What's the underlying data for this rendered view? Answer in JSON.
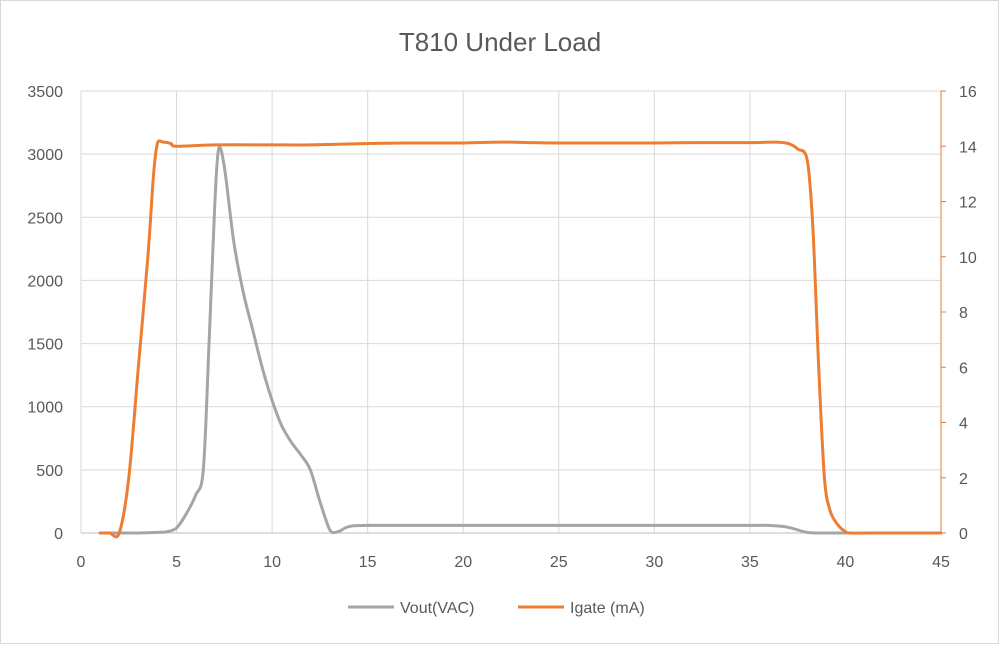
{
  "chart_data": {
    "type": "line",
    "title": "T810 Under Load",
    "xlabel": "",
    "ylabel": "",
    "y2label": "",
    "xlim": [
      0,
      45
    ],
    "ylim": [
      0,
      3500
    ],
    "y2lim": [
      0,
      16
    ],
    "x_ticks": [
      0,
      5,
      10,
      15,
      20,
      25,
      30,
      35,
      40,
      45
    ],
    "y_ticks": [
      0,
      500,
      1000,
      1500,
      2000,
      2500,
      3000,
      3500
    ],
    "y2_ticks": [
      0,
      2,
      4,
      6,
      8,
      10,
      12,
      14,
      16
    ],
    "grid": "vertical and horizontal",
    "legend_position": "bottom",
    "series": [
      {
        "name": "Vout(VAC)",
        "axis": "left",
        "color": "#a5a5a5",
        "points": [
          [
            1,
            0
          ],
          [
            2,
            0
          ],
          [
            3,
            0
          ],
          [
            4,
            5
          ],
          [
            4.5,
            10
          ],
          [
            5,
            40
          ],
          [
            5.5,
            150
          ],
          [
            6,
            300
          ],
          [
            6.4,
            500
          ],
          [
            6.7,
            1500
          ],
          [
            7,
            2600
          ],
          [
            7.2,
            3040
          ],
          [
            7.5,
            2900
          ],
          [
            8,
            2300
          ],
          [
            8.5,
            1900
          ],
          [
            9,
            1600
          ],
          [
            9.5,
            1300
          ],
          [
            10,
            1050
          ],
          [
            10.5,
            850
          ],
          [
            11,
            720
          ],
          [
            11.5,
            620
          ],
          [
            12,
            500
          ],
          [
            12.5,
            250
          ],
          [
            13,
            30
          ],
          [
            13.3,
            5
          ],
          [
            13.6,
            20
          ],
          [
            14,
            50
          ],
          [
            15,
            60
          ],
          [
            20,
            60
          ],
          [
            25,
            60
          ],
          [
            30,
            60
          ],
          [
            35,
            60
          ],
          [
            36,
            60
          ],
          [
            37,
            45
          ],
          [
            38,
            5
          ],
          [
            39,
            0
          ],
          [
            40,
            0
          ]
        ]
      },
      {
        "name": "Igate (mA)",
        "axis": "right",
        "color": "#ed7d31",
        "points": [
          [
            1,
            0
          ],
          [
            1.5,
            0
          ],
          [
            2,
            0
          ],
          [
            2.5,
            2
          ],
          [
            3,
            6
          ],
          [
            3.5,
            10
          ],
          [
            3.8,
            13
          ],
          [
            4,
            14.1
          ],
          [
            4.3,
            14.15
          ],
          [
            4.7,
            14.1
          ],
          [
            5,
            14.0
          ],
          [
            7,
            14.05
          ],
          [
            10,
            14.05
          ],
          [
            12,
            14.05
          ],
          [
            15,
            14.1
          ],
          [
            17,
            14.12
          ],
          [
            20,
            14.12
          ],
          [
            22,
            14.15
          ],
          [
            25,
            14.12
          ],
          [
            30,
            14.12
          ],
          [
            32,
            14.13
          ],
          [
            35,
            14.13
          ],
          [
            36.3,
            14.15
          ],
          [
            37,
            14.1
          ],
          [
            37.5,
            13.9
          ],
          [
            38,
            13.5
          ],
          [
            38.3,
            11
          ],
          [
            38.6,
            6
          ],
          [
            38.9,
            2
          ],
          [
            39.2,
            0.8
          ],
          [
            39.6,
            0.3
          ],
          [
            40,
            0.05
          ],
          [
            40.3,
            0
          ],
          [
            42,
            0
          ],
          [
            45,
            0
          ]
        ]
      }
    ]
  }
}
